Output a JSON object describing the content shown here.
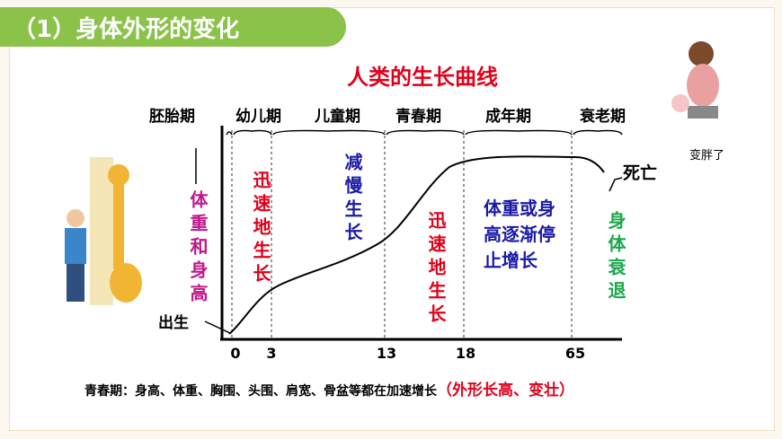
{
  "header": {
    "title": "（1）身体外形的变化"
  },
  "diagram": {
    "title": "人类的生长曲线",
    "y_label": "体重和身高",
    "stages": [
      "胚胎期",
      "幼儿期",
      "儿童期",
      "青春期",
      "成年期",
      "衰老期"
    ],
    "ages": [
      0,
      3,
      13,
      18,
      65
    ],
    "birth": "出生",
    "death": "死亡",
    "annotations": [
      {
        "lines": [
          "迅速地生长"
        ]
      },
      {
        "lines": [
          "减慢生长"
        ]
      },
      {
        "lines": [
          "迅速地生长"
        ]
      },
      {
        "lines": [
          "体重或身",
          "高逐渐停",
          "止增长"
        ]
      },
      {
        "lines": [
          "身体衰退"
        ]
      }
    ]
  },
  "side_note": "变胖了",
  "footer": {
    "text": "青春期：身高、体重、胸围、头围、肩宽、骨盆等都在加速增长",
    "highlight": "（外形长高、变壮）"
  }
}
